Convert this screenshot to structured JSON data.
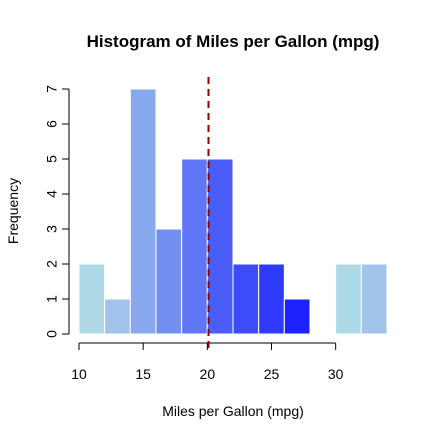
{
  "chart_data": {
    "type": "bar",
    "title": "Histogram of Miles per Gallon (mpg)",
    "xlabel": "Miles per Gallon (mpg)",
    "ylabel": "Frequency",
    "xlim": [
      10,
      34
    ],
    "ylim": [
      0,
      7
    ],
    "x_ticks": [
      10,
      15,
      20,
      25,
      30
    ],
    "y_ticks": [
      0,
      1,
      2,
      3,
      4,
      5,
      6,
      7
    ],
    "bin_width": 2,
    "grid": false,
    "bins": [
      {
        "start": 10,
        "end": 12,
        "count": 2,
        "color": "#add8e6"
      },
      {
        "start": 12,
        "end": 14,
        "count": 1,
        "color": "#a0c4ea"
      },
      {
        "start": 14,
        "end": 16,
        "count": 7,
        "color": "#87a7ee"
      },
      {
        "start": 16,
        "end": 18,
        "count": 3,
        "color": "#738ef1"
      },
      {
        "start": 18,
        "end": 20,
        "count": 5,
        "color": "#5f75f4"
      },
      {
        "start": 20,
        "end": 22,
        "count": 5,
        "color": "#4b5df7"
      },
      {
        "start": 22,
        "end": 24,
        "count": 2,
        "color": "#3d4cf9"
      },
      {
        "start": 24,
        "end": 26,
        "count": 2,
        "color": "#2f3bfb"
      },
      {
        "start": 26,
        "end": 28,
        "count": 1,
        "color": "#1e22fe"
      },
      {
        "start": 28,
        "end": 30,
        "count": 0,
        "color": "#ffffff"
      },
      {
        "start": 30,
        "end": 32,
        "count": 2,
        "color": "#add8e6"
      },
      {
        "start": 32,
        "end": 34,
        "count": 2,
        "color": "#a0c4ea"
      }
    ],
    "mean_line": {
      "x": 20.09,
      "color": "#8b0000",
      "style": "dashed"
    }
  }
}
